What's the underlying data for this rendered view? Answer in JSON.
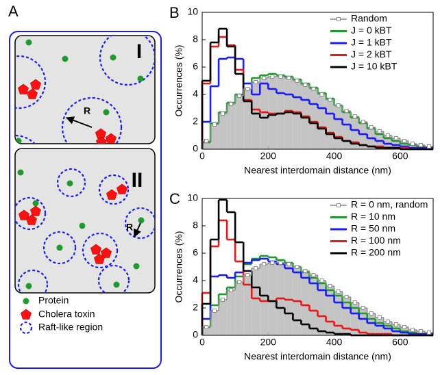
{
  "panel_a": {
    "label": "A",
    "subpanels": [
      {
        "label": "I",
        "radius_label": "R"
      },
      {
        "label": "II",
        "radius_label": "R"
      }
    ],
    "legend": [
      "Protein",
      "Cholera toxin",
      "Raft-like region"
    ]
  },
  "chart_data": [
    {
      "type": "histogram",
      "panel_label": "B",
      "xlabel": "Nearest interdomain distance (nm)",
      "ylabel": "Occurrences (%)",
      "xlim": [
        0,
        700
      ],
      "ylim": [
        0,
        10
      ],
      "xticks": [
        0,
        200,
        400,
        600
      ],
      "yticks": [
        0,
        2,
        4,
        6,
        8,
        10
      ],
      "legend": "upper right",
      "bins": [
        0,
        25,
        50,
        75,
        100,
        125,
        150,
        175,
        200,
        225,
        250,
        275,
        300,
        325,
        350,
        375,
        400,
        425,
        450,
        475,
        500,
        525,
        550,
        575,
        600,
        625,
        650,
        675,
        700
      ],
      "series": [
        {
          "name": "Random",
          "color": "#8c8c8c",
          "fill": "#c4c4c4",
          "marker": "square",
          "values": [
            0.6,
            1.8,
            2.6,
            3.3,
            3.9,
            4.4,
            4.9,
            5.2,
            5.3,
            5.3,
            5.2,
            5.0,
            4.7,
            4.4,
            4.0,
            3.6,
            3.2,
            2.8,
            2.4,
            2.0,
            1.6,
            1.3,
            1.0,
            0.8,
            0.6,
            0.4,
            0.3,
            0.2
          ]
        },
        {
          "name": "J = 0 kBT",
          "color": "#1f9a2e",
          "values": [
            0.5,
            1.9,
            2.7,
            3.4,
            4.0,
            4.8,
            5.2,
            5.4,
            5.5,
            5.4,
            5.3,
            5.1,
            4.8,
            4.5,
            4.1,
            3.7,
            3.2,
            2.7,
            2.3,
            1.9,
            1.5,
            1.1,
            0.8,
            0.6,
            0.4,
            0.3,
            0.2,
            0.1
          ]
        },
        {
          "name": "J = 1 kBT",
          "color": "#1a1aff",
          "values": [
            2.0,
            4.6,
            6.6,
            6.7,
            6.6,
            4.8,
            4.0,
            4.8,
            4.4,
            4.1,
            4.0,
            3.8,
            3.6,
            3.3,
            3.0,
            2.6,
            2.2,
            1.8,
            1.4,
            1.1,
            0.8,
            0.6,
            0.4,
            0.3,
            0.2,
            0.1,
            0.1,
            0.1
          ]
        },
        {
          "name": "J = 2 kBT",
          "color": "#e81818",
          "values": [
            4.8,
            7.5,
            8.2,
            7.6,
            5.8,
            3.6,
            2.9,
            2.7,
            2.6,
            2.6,
            2.8,
            2.7,
            2.4,
            2.0,
            1.6,
            1.2,
            0.9,
            0.6,
            0.5,
            0.3,
            0.2,
            0.2,
            0.1,
            0.1,
            0.1,
            0,
            0,
            0
          ]
        },
        {
          "name": "J = 10 kBT",
          "color": "#000000",
          "values": [
            5.0,
            7.8,
            8.8,
            7.5,
            5.5,
            3.5,
            2.6,
            2.3,
            2.5,
            2.6,
            2.7,
            2.6,
            2.3,
            1.9,
            1.5,
            1.1,
            0.8,
            0.6,
            0.4,
            0.3,
            0.2,
            0.1,
            0.1,
            0.1,
            0,
            0,
            0,
            0
          ]
        }
      ]
    },
    {
      "type": "histogram",
      "panel_label": "C",
      "xlabel": "Nearest interdomain distance (nm)",
      "ylabel": "Occurrences (%)",
      "xlim": [
        0,
        700
      ],
      "ylim": [
        0,
        10
      ],
      "xticks": [
        0,
        200,
        400,
        600
      ],
      "yticks": [
        0,
        2,
        4,
        6,
        8,
        10
      ],
      "legend": "upper right",
      "bins": [
        0,
        25,
        50,
        75,
        100,
        125,
        150,
        175,
        200,
        225,
        250,
        275,
        300,
        325,
        350,
        375,
        400,
        425,
        450,
        475,
        500,
        525,
        550,
        575,
        600,
        625,
        650,
        675,
        700
      ],
      "series": [
        {
          "name": "R = 0 nm, random",
          "color": "#8c8c8c",
          "fill": "#c4c4c4",
          "marker": "square",
          "values": [
            0.6,
            1.8,
            2.6,
            3.3,
            3.9,
            4.4,
            4.9,
            5.2,
            5.3,
            5.3,
            5.2,
            5.0,
            4.7,
            4.4,
            4.0,
            3.6,
            3.2,
            2.8,
            2.4,
            2.0,
            1.6,
            1.3,
            1.0,
            0.8,
            0.6,
            0.4,
            0.3,
            0.2
          ]
        },
        {
          "name": "R = 10 nm",
          "color": "#1f9a2e",
          "values": [
            0.6,
            2.2,
            3.0,
            3.5,
            4.3,
            5.2,
            5.6,
            5.8,
            5.7,
            5.5,
            5.3,
            5.0,
            4.6,
            4.2,
            3.8,
            3.3,
            2.9,
            2.4,
            2.0,
            1.6,
            1.2,
            0.9,
            0.7,
            0.5,
            0.3,
            0.2,
            0.1,
            0.1
          ]
        },
        {
          "name": "R = 50 nm",
          "color": "#1a1aff",
          "values": [
            1.2,
            4.3,
            4.4,
            4.2,
            4.6,
            5.3,
            5.5,
            5.6,
            5.4,
            5.2,
            4.9,
            4.6,
            4.2,
            3.8,
            3.3,
            2.9,
            2.4,
            2.0,
            1.6,
            1.2,
            0.9,
            0.7,
            0.5,
            0.3,
            0.2,
            0.1,
            0.1,
            0.1
          ]
        },
        {
          "name": "R = 100 nm",
          "color": "#e81818",
          "values": [
            3.1,
            6.5,
            8.4,
            7.0,
            5.4,
            3.7,
            2.7,
            2.5,
            2.5,
            2.7,
            2.6,
            2.5,
            2.2,
            1.8,
            1.4,
            1.0,
            0.7,
            0.5,
            0.4,
            0.2,
            0.1,
            0.1,
            0.1,
            0,
            0,
            0,
            0,
            0
          ]
        },
        {
          "name": "R = 200 nm",
          "color": "#000000",
          "values": [
            2.3,
            7.0,
            9.9,
            9.0,
            6.8,
            4.7,
            3.5,
            2.9,
            2.5,
            2.0,
            1.6,
            1.1,
            0.8,
            0.5,
            0.3,
            0.2,
            0.1,
            0.1,
            0,
            0,
            0,
            0,
            0,
            0,
            0,
            0,
            0,
            0
          ]
        }
      ]
    }
  ]
}
